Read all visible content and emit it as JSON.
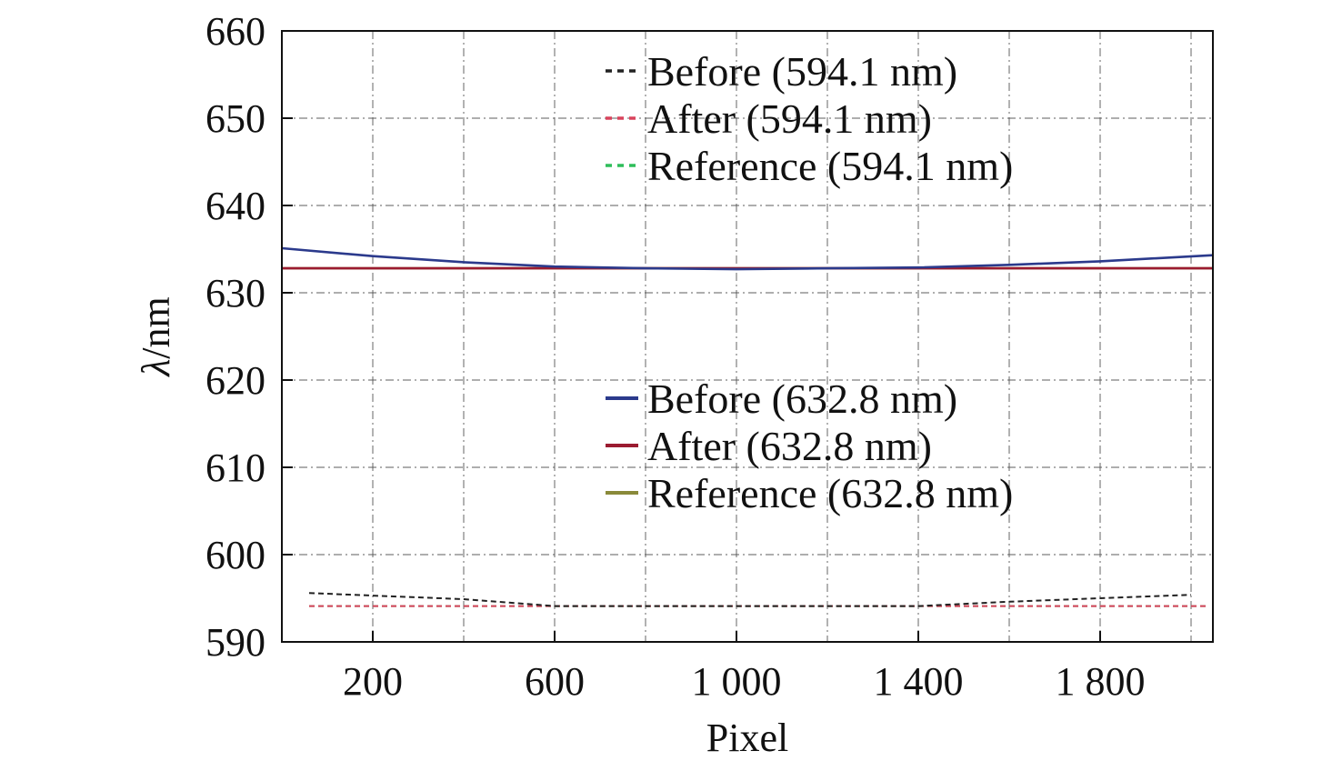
{
  "chart_data": {
    "type": "line",
    "title": "",
    "xlabel": "Pixel",
    "ylabel": "λ/nm",
    "ylabel_symbol": "λ",
    "ylabel_unit": "/nm",
    "xlim": [
      0,
      2048
    ],
    "ylim": [
      590,
      660
    ],
    "xticks": [
      200,
      600,
      1000,
      1400,
      1800
    ],
    "xtick_labels": [
      "200",
      "600",
      "1 000",
      "1 400",
      "1 800"
    ],
    "yticks": [
      590,
      600,
      610,
      620,
      630,
      640,
      650,
      660
    ],
    "ytick_labels": [
      "590",
      "600",
      "610",
      "620",
      "630",
      "640",
      "650",
      "660"
    ],
    "grid": true,
    "legends": [
      {
        "placement": "top-center",
        "entries": [
          {
            "label": "Before (594.1 nm)",
            "color": "#222222",
            "style": "dashed"
          },
          {
            "label": "After (594.1 nm)",
            "color": "#d9435c",
            "style": "dashed"
          },
          {
            "label": "Reference (594.1 nm)",
            "color": "#2ebd5a",
            "style": "dashed"
          }
        ]
      },
      {
        "placement": "center",
        "entries": [
          {
            "label": "Before (632.8 nm)",
            "color": "#2b3a8c",
            "style": "solid"
          },
          {
            "label": "After (632.8 nm)",
            "color": "#9b1b30",
            "style": "solid"
          },
          {
            "label": "Reference (632.8 nm)",
            "color": "#8a8a3a",
            "style": "solid"
          }
        ]
      }
    ],
    "series": [
      {
        "name": "Before (594.1 nm)",
        "color": "#222222",
        "style": "dashed",
        "x": [
          60,
          200,
          400,
          500,
          600,
          800,
          1000,
          1200,
          1400,
          1600,
          1800,
          2000
        ],
        "y": [
          595.6,
          595.3,
          594.9,
          594.5,
          594.1,
          594.1,
          594.1,
          594.1,
          594.1,
          594.6,
          595.0,
          595.4
        ]
      },
      {
        "name": "After (594.1 nm)",
        "color": "#d9435c",
        "style": "dashed",
        "x": [
          60,
          2040
        ],
        "y": [
          594.1,
          594.1
        ]
      },
      {
        "name": "Reference (594.1 nm)",
        "color": "#2ebd5a",
        "style": "dashed",
        "x": [
          60,
          2040
        ],
        "y": [
          594.1,
          594.1
        ]
      },
      {
        "name": "Before (632.8 nm)",
        "color": "#2b3a8c",
        "style": "solid",
        "x": [
          0,
          200,
          400,
          600,
          800,
          1000,
          1200,
          1400,
          1600,
          1800,
          2048
        ],
        "y": [
          635.1,
          634.2,
          633.5,
          633.0,
          632.8,
          632.7,
          632.8,
          632.9,
          633.2,
          633.6,
          634.3
        ]
      },
      {
        "name": "After (632.8 nm)",
        "color": "#9b1b30",
        "style": "solid",
        "x": [
          0,
          2048
        ],
        "y": [
          632.8,
          632.8
        ]
      },
      {
        "name": "Reference (632.8 nm)",
        "color": "#8a8a3a",
        "style": "solid",
        "x": [
          0,
          2048
        ],
        "y": [
          632.8,
          632.8
        ]
      }
    ]
  }
}
